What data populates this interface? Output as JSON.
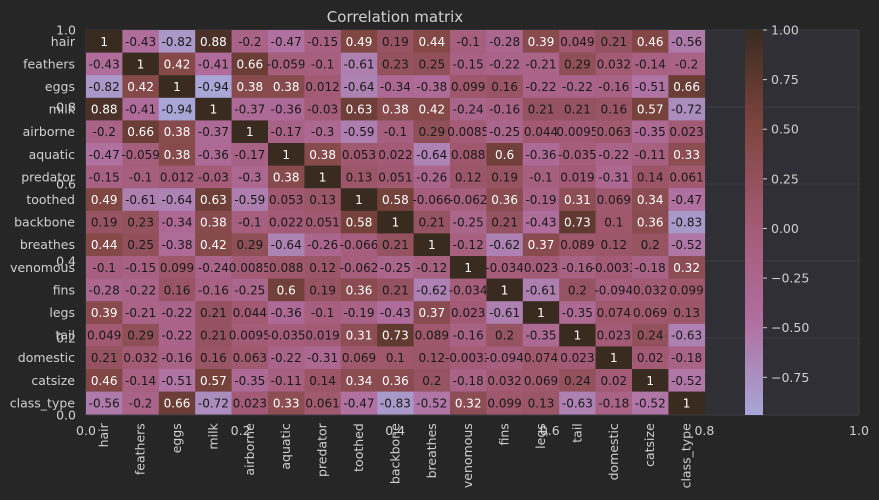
{
  "chart_data": {
    "type": "heatmap",
    "title": "Correlation matrix",
    "variables": [
      "hair",
      "feathers",
      "eggs",
      "milk",
      "airborne",
      "aquatic",
      "predator",
      "toothed",
      "backbone",
      "breathes",
      "venomous",
      "fins",
      "legs",
      "tail",
      "domestic",
      "catsize",
      "class_type"
    ],
    "matrix": [
      [
        1,
        -0.43,
        -0.82,
        0.88,
        -0.2,
        -0.47,
        -0.15,
        0.49,
        0.19,
        0.44,
        -0.1,
        -0.28,
        0.39,
        0.049,
        0.21,
        0.46,
        -0.56
      ],
      [
        -0.43,
        1,
        0.42,
        -0.41,
        0.66,
        -0.059,
        -0.1,
        -0.61,
        0.23,
        0.25,
        -0.15,
        -0.22,
        -0.21,
        0.29,
        0.032,
        -0.14,
        -0.2
      ],
      [
        -0.82,
        0.42,
        1,
        -0.94,
        0.38,
        0.38,
        0.012,
        -0.64,
        -0.34,
        -0.38,
        0.099,
        0.16,
        -0.22,
        -0.22,
        -0.16,
        -0.51,
        0.66
      ],
      [
        0.88,
        -0.41,
        -0.94,
        1,
        -0.37,
        -0.36,
        -0.03,
        0.63,
        0.38,
        0.42,
        -0.24,
        -0.16,
        0.21,
        0.21,
        0.16,
        0.57,
        -0.72
      ],
      [
        -0.2,
        0.66,
        0.38,
        -0.37,
        1,
        -0.17,
        -0.3,
        -0.59,
        -0.1,
        0.29,
        0.0085,
        -0.25,
        0.044,
        0.0095,
        0.063,
        -0.35,
        0.023
      ],
      [
        -0.47,
        -0.059,
        0.38,
        -0.36,
        -0.17,
        1,
        0.38,
        0.053,
        0.022,
        -0.64,
        0.088,
        0.6,
        -0.36,
        -0.035,
        -0.22,
        -0.11,
        0.33
      ],
      [
        -0.15,
        -0.1,
        0.012,
        -0.03,
        -0.3,
        0.38,
        1,
        0.13,
        0.051,
        -0.26,
        0.12,
        0.19,
        -0.1,
        0.019,
        -0.31,
        0.14,
        0.061
      ],
      [
        0.49,
        -0.61,
        -0.64,
        0.63,
        -0.59,
        0.053,
        0.13,
        1,
        0.58,
        -0.066,
        -0.062,
        0.36,
        -0.19,
        0.31,
        0.069,
        0.34,
        -0.47
      ],
      [
        0.19,
        0.23,
        -0.34,
        0.38,
        -0.1,
        0.022,
        0.051,
        0.58,
        1,
        0.21,
        -0.25,
        0.21,
        -0.43,
        0.73,
        0.1,
        0.36,
        -0.83
      ],
      [
        0.44,
        0.25,
        -0.38,
        0.42,
        0.29,
        -0.64,
        -0.26,
        -0.066,
        0.21,
        1,
        -0.12,
        -0.62,
        0.37,
        0.089,
        0.12,
        0.2,
        -0.52
      ],
      [
        -0.1,
        -0.15,
        0.099,
        -0.24,
        0.0085,
        0.088,
        0.12,
        -0.062,
        -0.25,
        -0.12,
        1,
        -0.034,
        0.023,
        -0.16,
        -0.0033,
        -0.18,
        0.32
      ],
      [
        -0.28,
        -0.22,
        0.16,
        -0.16,
        -0.25,
        0.6,
        0.19,
        0.36,
        0.21,
        -0.62,
        -0.034,
        1,
        -0.61,
        0.2,
        -0.094,
        0.032,
        0.099
      ],
      [
        0.39,
        -0.21,
        -0.22,
        0.21,
        0.044,
        -0.36,
        -0.1,
        -0.19,
        -0.43,
        0.37,
        0.023,
        -0.61,
        1,
        -0.35,
        0.074,
        0.069,
        0.13
      ],
      [
        0.049,
        0.29,
        -0.22,
        0.21,
        0.0095,
        -0.035,
        0.019,
        0.31,
        0.73,
        0.089,
        -0.16,
        0.2,
        -0.35,
        1,
        0.023,
        0.24,
        -0.63
      ],
      [
        0.21,
        0.032,
        -0.16,
        0.16,
        0.063,
        -0.22,
        -0.31,
        0.069,
        0.1,
        0.12,
        -0.0033,
        -0.094,
        0.074,
        0.023,
        1,
        0.02,
        -0.18
      ],
      [
        0.46,
        -0.14,
        -0.51,
        0.57,
        -0.35,
        -0.11,
        0.14,
        0.34,
        0.36,
        0.2,
        -0.18,
        0.032,
        0.069,
        0.24,
        0.02,
        1,
        -0.52
      ],
      [
        -0.56,
        -0.2,
        0.66,
        -0.72,
        0.023,
        0.33,
        0.061,
        -0.47,
        -0.83,
        -0.52,
        0.32,
        0.099,
        0.13,
        -0.63,
        -0.18,
        -0.52,
        1
      ]
    ],
    "colorbar": {
      "ticks": [
        "1.00",
        "0.75",
        "0.50",
        "0.25",
        "0.00",
        "−0.25",
        "−0.50",
        "−0.75"
      ],
      "tick_values": [
        1,
        0.75,
        0.5,
        0.25,
        0,
        -0.25,
        -0.5,
        -0.75
      ],
      "range": [
        -0.94,
        1
      ],
      "colors": [
        "#a7a6d6",
        "#b06e9e",
        "#a35a73",
        "#7e453f",
        "#3a2b20"
      ]
    },
    "overlay_axes": {
      "x_ticks": [
        "0.0",
        "0.2",
        "0.4",
        "0.6",
        "0.8",
        "1.0"
      ],
      "y_ticks": [
        "1.0",
        "0.8",
        "0.6",
        "0.4",
        "0.2",
        "0.0"
      ],
      "tick_values": [
        0,
        0.2,
        0.4,
        0.6,
        0.8,
        1.0
      ]
    },
    "grid": true
  }
}
